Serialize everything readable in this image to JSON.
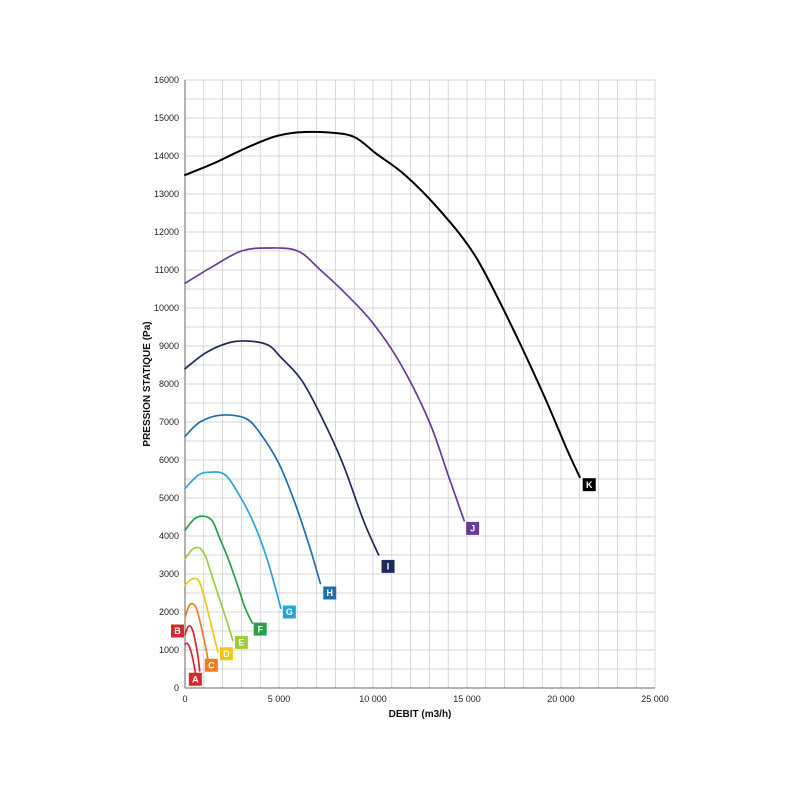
{
  "chart_data": {
    "type": "line",
    "title": "",
    "xlabel": "DEBIT (m3/h)",
    "ylabel": "PRESSION STATIQUE (Pa)",
    "xlim": [
      0,
      25000
    ],
    "ylim": [
      0,
      16000
    ],
    "x_ticks": [
      0,
      5000,
      10000,
      15000,
      20000,
      25000
    ],
    "x_tick_labels": [
      "0",
      "5 000",
      "10 000",
      "15 000",
      "20 000",
      "25 000"
    ],
    "y_ticks": [
      0,
      1000,
      2000,
      3000,
      4000,
      5000,
      6000,
      7000,
      8000,
      9000,
      10000,
      11000,
      12000,
      13000,
      14000,
      15000,
      16000
    ],
    "y_tick_labels": [
      "0",
      "1000",
      "2000",
      "3000",
      "4000",
      "5000",
      "6000",
      "7000",
      "8000",
      "9000",
      "10000",
      "11000",
      "12000",
      "13000",
      "14000",
      "15000",
      "16000"
    ],
    "grid": true,
    "series": [
      {
        "name": "A",
        "color": "#d7262e",
        "points": [
          [
            0,
            1150
          ],
          [
            100,
            1180
          ],
          [
            200,
            1120
          ],
          [
            300,
            1000
          ],
          [
            400,
            800
          ],
          [
            500,
            550
          ],
          [
            550,
            400
          ]
        ],
        "label_at": [
          550,
          230
        ]
      },
      {
        "name": "B",
        "color": "#d7262e",
        "points": [
          [
            0,
            1400
          ],
          [
            150,
            1600
          ],
          [
            300,
            1620
          ],
          [
            450,
            1450
          ],
          [
            600,
            1100
          ],
          [
            700,
            800
          ],
          [
            780,
            450
          ]
        ],
        "label_at": [
          -400,
          1500
        ]
      },
      {
        "name": "C",
        "color": "#ee7d1e",
        "points": [
          [
            0,
            1850
          ],
          [
            200,
            2150
          ],
          [
            400,
            2220
          ],
          [
            600,
            2100
          ],
          [
            800,
            1750
          ],
          [
            1000,
            1300
          ],
          [
            1150,
            950
          ],
          [
            1250,
            650
          ]
        ],
        "label_at": [
          1400,
          600
        ]
      },
      {
        "name": "D",
        "color": "#f3c514",
        "points": [
          [
            0,
            2700
          ],
          [
            300,
            2850
          ],
          [
            600,
            2880
          ],
          [
            800,
            2750
          ],
          [
            1050,
            2350
          ],
          [
            1300,
            1850
          ],
          [
            1550,
            1350
          ],
          [
            1750,
            950
          ]
        ],
        "label_at": [
          2200,
          900
        ]
      },
      {
        "name": "E",
        "color": "#9ccc3c",
        "points": [
          [
            0,
            3400
          ],
          [
            400,
            3650
          ],
          [
            800,
            3680
          ],
          [
            1100,
            3450
          ],
          [
            1400,
            3000
          ],
          [
            1800,
            2400
          ],
          [
            2200,
            1800
          ],
          [
            2550,
            1250
          ]
        ],
        "label_at": [
          3000,
          1200
        ]
      },
      {
        "name": "F",
        "color": "#2aa148",
        "points": [
          [
            0,
            4150
          ],
          [
            500,
            4450
          ],
          [
            1000,
            4520
          ],
          [
            1450,
            4400
          ],
          [
            1800,
            4000
          ],
          [
            2300,
            3400
          ],
          [
            2800,
            2700
          ],
          [
            3200,
            2100
          ],
          [
            3600,
            1700
          ]
        ],
        "label_at": [
          4000,
          1550
        ]
      },
      {
        "name": "G",
        "color": "#29a3d8",
        "points": [
          [
            0,
            5250
          ],
          [
            700,
            5600
          ],
          [
            1300,
            5680
          ],
          [
            2100,
            5620
          ],
          [
            2800,
            5150
          ],
          [
            3600,
            4400
          ],
          [
            4300,
            3500
          ],
          [
            4800,
            2650
          ],
          [
            5100,
            2100
          ]
        ],
        "label_at": [
          5550,
          2000
        ]
      },
      {
        "name": "H",
        "color": "#1e6fae",
        "points": [
          [
            0,
            6620
          ],
          [
            800,
            7000
          ],
          [
            1900,
            7180
          ],
          [
            3200,
            7100
          ],
          [
            4000,
            6700
          ],
          [
            5000,
            5900
          ],
          [
            5900,
            4800
          ],
          [
            6700,
            3600
          ],
          [
            7200,
            2750
          ]
        ],
        "label_at": [
          7700,
          2500
        ]
      },
      {
        "name": "I",
        "color": "#1f2a5c",
        "points": [
          [
            0,
            8400
          ],
          [
            1200,
            8850
          ],
          [
            2700,
            9120
          ],
          [
            4300,
            9050
          ],
          [
            5100,
            8700
          ],
          [
            6200,
            8100
          ],
          [
            7300,
            7100
          ],
          [
            8400,
            5900
          ],
          [
            9500,
            4400
          ],
          [
            10300,
            3500
          ]
        ],
        "label_at": [
          10800,
          3200
        ]
      },
      {
        "name": "J",
        "color": "#6a3a98",
        "points": [
          [
            0,
            10650
          ],
          [
            1500,
            11100
          ],
          [
            3000,
            11500
          ],
          [
            4400,
            11580
          ],
          [
            6000,
            11500
          ],
          [
            7200,
            11000
          ],
          [
            8500,
            10400
          ],
          [
            10000,
            9600
          ],
          [
            11500,
            8500
          ],
          [
            13000,
            7000
          ],
          [
            14000,
            5600
          ],
          [
            14850,
            4400
          ]
        ],
        "label_at": [
          15300,
          4200
        ]
      },
      {
        "name": "K",
        "color": "#000000",
        "points": [
          [
            0,
            13500
          ],
          [
            1500,
            13800
          ],
          [
            3200,
            14200
          ],
          [
            4700,
            14500
          ],
          [
            6000,
            14620
          ],
          [
            7600,
            14620
          ],
          [
            9000,
            14500
          ],
          [
            10200,
            14050
          ],
          [
            11700,
            13500
          ],
          [
            13500,
            12600
          ],
          [
            15400,
            11400
          ],
          [
            17200,
            9700
          ],
          [
            19000,
            7800
          ],
          [
            20300,
            6300
          ],
          [
            21000,
            5550
          ]
        ],
        "label_at": [
          21500,
          5350
        ]
      }
    ]
  }
}
